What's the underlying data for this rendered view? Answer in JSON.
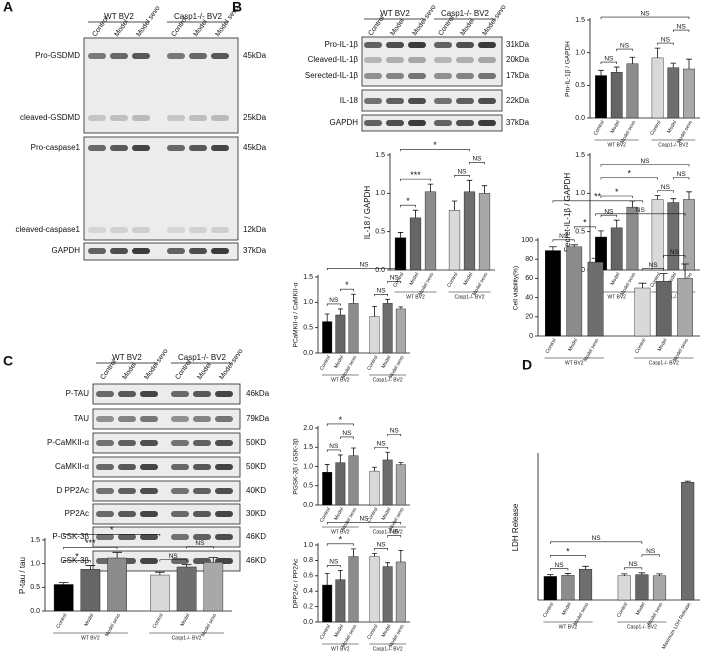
{
  "panel_letters": [
    "A",
    "B",
    "C",
    "D"
  ],
  "blots": [
    {
      "groups": [
        "WT BV2",
        "Casp1-/- BV2"
      ],
      "lanes": [
        "Control",
        "Model",
        "Model sevo",
        "Control",
        "Model",
        "Model sevo"
      ],
      "rows": [
        {
          "label": "Pro-GSDMD",
          "size": "45kDa"
        },
        {
          "label": "cleaved-GSDMD",
          "size": "25kDa"
        },
        {
          "label": "Pro-caspase1",
          "size": "45kDa"
        },
        {
          "label": "cleaved-caspase1",
          "size": "12kDa"
        },
        {
          "label": "GAPDH",
          "size": "37kDa"
        }
      ]
    },
    {
      "groups": [
        "WT BV2",
        "Casp1-/- BV2"
      ],
      "lanes": [
        "Control",
        "Model",
        "Model sevo",
        "Control",
        "Model",
        "Model sevo"
      ],
      "rows": [
        {
          "label": "Pro-IL-1β",
          "size": "31kDa"
        },
        {
          "label": "Cleaved-IL-1β",
          "size": "20kDa"
        },
        {
          "label": "Serected-IL-1β",
          "size": "17kDa"
        },
        {
          "label": "IL-18",
          "size": "22kDa"
        },
        {
          "label": "GAPDH",
          "size": "37kDa"
        }
      ]
    },
    {
      "groups": [
        "WT BV2",
        "Casp1-/- BV2"
      ],
      "lanes": [
        "Control",
        "Model",
        "Model sevo",
        "Control",
        "Model",
        "Model sevo"
      ],
      "rows": [
        {
          "label": "P-TAU",
          "size": "46kDa"
        },
        {
          "label": "TAU",
          "size": "79kDa"
        },
        {
          "label": "P-CaMKII-α",
          "size": "50KD"
        },
        {
          "label": "CaMKII-α",
          "size": "50KD"
        },
        {
          "label": "D PP2Ac",
          "size": "40KD"
        },
        {
          "label": "PP2Ac",
          "size": "30KD"
        },
        {
          "label": "P-GSK-3β",
          "size": "46KD"
        },
        {
          "label": "GSK-3β",
          "size": "46KD"
        }
      ]
    }
  ],
  "chart_data": [
    {
      "type": "bar",
      "ylabel": "Pro-IL-1β / GAPDH",
      "categories": [
        "Control",
        "Model",
        "Model sevo",
        "Control",
        "Model",
        "Model sevo"
      ],
      "values": [
        0.65,
        0.7,
        0.83,
        0.92,
        0.77,
        0.75
      ],
      "errors": [
        0.08,
        0.08,
        0.1,
        0.15,
        0.07,
        0.15
      ],
      "colors": [
        "#000000",
        "#666666",
        "#8c8c8c",
        "#d9d9d9",
        "#6e6e6e",
        "#a8a8a8"
      ],
      "ylim": [
        0,
        1.5
      ],
      "yticks": [
        {
          "value": 0,
          "label": "0.0"
        },
        0.5,
        {
          "value": 1,
          "label": "1.0"
        },
        1.5
      ],
      "groups": [
        {
          "name": "WT BV2",
          "from": 0,
          "to": 2
        },
        {
          "name": "Casp1-/- BV2",
          "from": 3,
          "to": 5
        }
      ],
      "annotations": [
        {
          "text": "NS",
          "from": 0,
          "to": 1
        },
        {
          "text": "NS",
          "from": 1,
          "to": 2
        },
        {
          "text": "NS",
          "from": 3,
          "to": 4
        },
        {
          "text": "NS",
          "from": 4,
          "to": 5
        },
        {
          "text": "NS",
          "from": 0,
          "to": 5
        }
      ]
    },
    {
      "type": "bar",
      "ylabel": "IL-18 / GAPDH",
      "categories": [
        "Control",
        "Model",
        "Model sevo",
        "Control",
        "Model",
        "Model sevo"
      ],
      "values": [
        0.42,
        0.68,
        1.02,
        0.78,
        1.02,
        1.0
      ],
      "errors": [
        0.07,
        0.1,
        0.1,
        0.12,
        0.15,
        0.1
      ],
      "colors": [
        "#000000",
        "#666666",
        "#8c8c8c",
        "#d9d9d9",
        "#6e6e6e",
        "#a8a8a8"
      ],
      "ylim": [
        0,
        1.5
      ],
      "yticks": [
        {
          "value": 0,
          "label": "0.0"
        },
        0.5,
        {
          "value": 1,
          "label": "1.0"
        },
        1.5
      ],
      "groups": [
        {
          "name": "WT BV2",
          "from": 0,
          "to": 2
        },
        {
          "name": "Casp1-/- BV2",
          "from": 3,
          "to": 5
        }
      ],
      "annotations": [
        {
          "text": "*",
          "from": 0,
          "to": 1
        },
        {
          "text": "NS",
          "from": 3,
          "to": 4
        },
        {
          "text": "NS",
          "from": 4,
          "to": 5
        },
        {
          "text": "***",
          "from": 0,
          "to": 2
        },
        {
          "text": "*",
          "from": 0,
          "to": 4
        }
      ]
    },
    {
      "type": "bar",
      "ylabel": "Secret-IL-1β / GAPDH",
      "categories": [
        "Control",
        "Model",
        "Model sevo",
        "Control",
        "Model",
        "Model sevo"
      ],
      "values": [
        0.43,
        0.55,
        0.82,
        0.92,
        0.88,
        0.92
      ],
      "errors": [
        0.08,
        0.1,
        0.08,
        0.05,
        0.05,
        0.1
      ],
      "colors": [
        "#000000",
        "#666666",
        "#8c8c8c",
        "#d9d9d9",
        "#6e6e6e",
        "#a8a8a8"
      ],
      "ylim": [
        0,
        1.5
      ],
      "yticks": [
        {
          "value": 0,
          "label": "0.0"
        },
        0.5,
        {
          "value": 1,
          "label": "1.0"
        },
        1.5
      ],
      "groups": [
        {
          "name": "WT BV2",
          "from": 0,
          "to": 2
        },
        {
          "name": "Casp1-/- BV2",
          "from": 3,
          "to": 5
        }
      ],
      "annotations": [
        {
          "text": "NS",
          "from": 0,
          "to": 1
        },
        {
          "text": "NS",
          "from": 3,
          "to": 4
        },
        {
          "text": "NS",
          "from": 4,
          "to": 5
        },
        {
          "text": "*",
          "from": 0,
          "to": 2
        },
        {
          "text": "*",
          "from": 0,
          "to": 3
        },
        {
          "text": "NS",
          "from": 0,
          "to": 5
        }
      ]
    },
    {
      "type": "bar",
      "ylabel": "P-tau / tau",
      "categories": [
        "Control",
        "Model",
        "Model sevo",
        "Control",
        "Model",
        "Model sevo"
      ],
      "values": [
        0.56,
        0.88,
        1.12,
        0.76,
        0.93,
        1.03
      ],
      "errors": [
        0.04,
        0.08,
        0.12,
        0.06,
        0.05,
        0.1
      ],
      "colors": [
        "#000000",
        "#666666",
        "#8c8c8c",
        "#d9d9d9",
        "#6e6e6e",
        "#a8a8a8"
      ],
      "ylim": [
        0,
        1.5
      ],
      "yticks": [
        {
          "value": 0,
          "label": "0.0"
        },
        0.5,
        {
          "value": 1,
          "label": "1.0"
        },
        1.5
      ],
      "groups": [
        {
          "name": "WT BV2",
          "from": 0,
          "to": 2
        },
        {
          "name": "Casp1-/- BV2",
          "from": 3,
          "to": 5
        }
      ],
      "annotations": [
        {
          "text": "*",
          "from": 0,
          "to": 1
        },
        {
          "text": "NS",
          "from": 3,
          "to": 4
        },
        {
          "text": "NS",
          "from": 4,
          "to": 5
        },
        {
          "text": "***",
          "from": 0,
          "to": 2
        },
        {
          "text": "*",
          "from": 0,
          "to": 3
        }
      ]
    },
    {
      "type": "bar",
      "ylabel": "PCaMKII-α / CaMKII-α",
      "categories": [
        "Control",
        "Model",
        "Model sevo",
        "Control",
        "Model",
        "Model sevo"
      ],
      "values": [
        0.62,
        0.75,
        0.98,
        0.72,
        0.98,
        0.87
      ],
      "errors": [
        0.15,
        0.12,
        0.18,
        0.2,
        0.08,
        0.04
      ],
      "colors": [
        "#000000",
        "#666666",
        "#8c8c8c",
        "#d9d9d9",
        "#6e6e6e",
        "#a8a8a8"
      ],
      "ylim": [
        0,
        1.5
      ],
      "yticks": [
        {
          "value": 0,
          "label": "0.0"
        },
        0.5,
        {
          "value": 1,
          "label": "1.0"
        },
        1.5
      ],
      "groups": [
        {
          "name": "WT BV2",
          "from": 0,
          "to": 2
        },
        {
          "name": "Casp1-/- BV2",
          "from": 3,
          "to": 5
        }
      ],
      "annotations": [
        {
          "text": "NS",
          "from": 0,
          "to": 1
        },
        {
          "text": "*",
          "from": 1,
          "to": 2
        },
        {
          "text": "NS",
          "from": 3,
          "to": 4
        },
        {
          "text": "NS",
          "from": 4,
          "to": 5
        },
        {
          "text": "NS",
          "from": 0,
          "to": 5
        }
      ]
    },
    {
      "type": "bar",
      "ylabel": "PGSK-3β / GSK-3β",
      "categories": [
        "Control",
        "Model",
        "Model sevo",
        "Control",
        "Model",
        "Model sevo"
      ],
      "values": [
        0.85,
        1.1,
        1.28,
        0.88,
        1.17,
        1.05
      ],
      "errors": [
        0.2,
        0.2,
        0.2,
        0.1,
        0.2,
        0.05
      ],
      "colors": [
        "#000000",
        "#666666",
        "#8c8c8c",
        "#d9d9d9",
        "#6e6e6e",
        "#a8a8a8"
      ],
      "ylim": [
        0,
        2
      ],
      "yticks": [
        {
          "value": 0,
          "label": "0.0"
        },
        0.5,
        {
          "value": 1,
          "label": "1.0"
        },
        1.5,
        {
          "value": 2,
          "label": "2.0"
        }
      ],
      "groups": [
        {
          "name": "WT BV2",
          "from": 0,
          "to": 2
        },
        {
          "name": "Casp1-/- BV2",
          "from": 3,
          "to": 5
        }
      ],
      "annotations": [
        {
          "text": "NS",
          "from": 0,
          "to": 1
        },
        {
          "text": "NS",
          "from": 1,
          "to": 2
        },
        {
          "text": "NS",
          "from": 3,
          "to": 4
        },
        {
          "text": "NS",
          "from": 4,
          "to": 5
        },
        {
          "text": "*",
          "from": 0,
          "to": 2
        }
      ]
    },
    {
      "type": "bar",
      "ylabel": "DPP2Ac / PP2Ac",
      "categories": [
        "Control",
        "Model",
        "Model sevo",
        "Control",
        "Model",
        "Model sevo"
      ],
      "values": [
        0.48,
        0.55,
        0.85,
        0.85,
        0.72,
        0.78
      ],
      "errors": [
        0.15,
        0.12,
        0.1,
        0.04,
        0.05,
        0.15
      ],
      "colors": [
        "#000000",
        "#666666",
        "#8c8c8c",
        "#d9d9d9",
        "#6e6e6e",
        "#a8a8a8"
      ],
      "ylim": [
        0,
        1
      ],
      "yticks": [
        {
          "value": 0,
          "label": "0.0"
        },
        0.2,
        0.4,
        0.6,
        0.8,
        {
          "value": 1,
          "label": "1.0"
        }
      ],
      "groups": [
        {
          "name": "WT BV2",
          "from": 0,
          "to": 2
        },
        {
          "name": "Casp1-/- BV2",
          "from": 3,
          "to": 5
        }
      ],
      "annotations": [
        {
          "text": "NS",
          "from": 0,
          "to": 1
        },
        {
          "text": "NS",
          "from": 3,
          "to": 4
        },
        {
          "text": "NS",
          "from": 4,
          "to": 5
        },
        {
          "text": "*",
          "from": 0,
          "to": 2
        },
        {
          "text": "NS",
          "from": 0,
          "to": 5
        }
      ]
    },
    {
      "type": "bar",
      "ylabel": "Cell viability(%)",
      "categories": [
        "Control",
        "Model",
        "Model sevo",
        "Control",
        "Model",
        "Model sevo"
      ],
      "values": [
        89,
        93,
        77,
        50,
        57,
        60
      ],
      "errors": [
        4,
        2,
        4,
        5,
        8,
        15
      ],
      "colors": [
        "#000000",
        "#8c8c8c",
        "#6e6e6e",
        "#d9d9d9",
        "#666666",
        "#a8a8a8"
      ],
      "ylim": [
        0,
        100
      ],
      "yticks": [
        0,
        20,
        40,
        60,
        80,
        100
      ],
      "groups": [
        {
          "name": "WT BV2",
          "from": 0,
          "to": 2
        },
        {
          "name": "Casp1-/- BV2",
          "from": 3,
          "to": 5
        }
      ],
      "annotations": [
        {
          "text": "NS",
          "from": 0,
          "to": 1
        },
        {
          "text": "*",
          "from": 1,
          "to": 2
        },
        {
          "text": "NS",
          "from": 3,
          "to": 4
        },
        {
          "text": "NS",
          "from": 4,
          "to": 5
        },
        {
          "text": "NS",
          "from": 2,
          "to": 5
        },
        {
          "text": "**",
          "from": 0,
          "to": 3
        }
      ]
    },
    {
      "type": "bar",
      "ylabel": "LDH Release",
      "categories": [
        "Control",
        "Model",
        "Model sevo",
        "Control",
        "Model",
        "Model sevo",
        "Maximum LDH Release"
      ],
      "values": [
        0.65,
        0.68,
        0.85,
        0.67,
        0.7,
        0.67,
        3.25
      ],
      "errors": [
        0.05,
        0.05,
        0.08,
        0.05,
        0.05,
        0.05,
        0.03
      ],
      "colors": [
        "#000000",
        "#8c8c8c",
        "#6e6e6e",
        "#d9d9d9",
        "#666666",
        "#a8a8a8",
        "#6e6e6e"
      ],
      "ylim": [
        0,
        4
      ],
      "groups": [
        {
          "name": "WT BV2",
          "from": 0,
          "to": 2
        },
        {
          "name": "Casp1-/- BV2",
          "from": 3,
          "to": 5
        }
      ],
      "annotations": [
        {
          "text": "NS",
          "from": 0,
          "to": 1
        },
        {
          "text": "NS",
          "from": 3,
          "to": 4
        },
        {
          "text": "NS",
          "from": 4,
          "to": 5
        },
        {
          "text": "*",
          "from": 0,
          "to": 2
        },
        {
          "text": "NS",
          "from": 0,
          "to": 4
        }
      ]
    }
  ]
}
